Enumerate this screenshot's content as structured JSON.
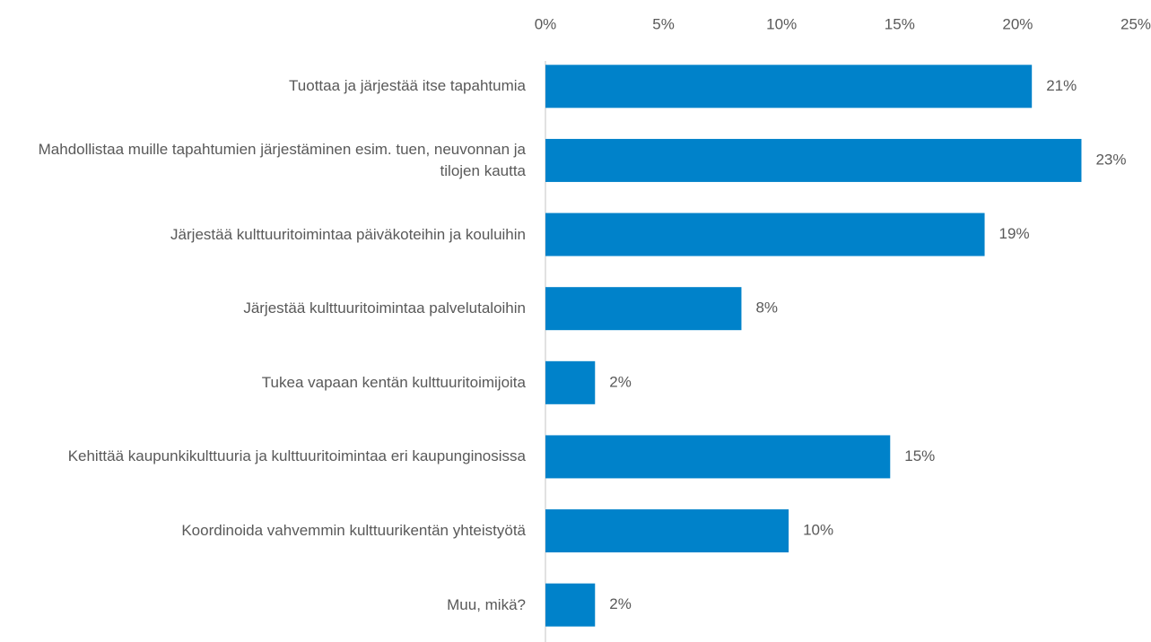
{
  "chart_data": {
    "type": "barh",
    "categories": [
      "Tuottaa ja järjestää itse tapahtumia",
      "Mahdollistaa muille tapahtumien järjestäminen esim. tuen, neuvonnan ja tilojen kautta",
      "Järjestää kulttuuritoimintaa päiväkoteihin ja kouluihin",
      "Järjestää kulttuuritoimintaa palvelutaloihin",
      "Tukea vapaan kentän kulttuuritoimijoita",
      "Kehittää kaupunkikulttuuria ja kulttuuritoimintaa eri kaupunginosissa",
      "Koordinoida vahvemmin kulttuurikentän yhteistyötä",
      "Muu, mikä?"
    ],
    "values": [
      20.6,
      22.7,
      18.6,
      8.3,
      2.1,
      14.6,
      10.3,
      2.1
    ],
    "value_labels": [
      "21%",
      "23%",
      "19%",
      "8%",
      "2%",
      "15%",
      "10%",
      "2%"
    ],
    "color": "#0082ca",
    "xlim": [
      0,
      25
    ],
    "xticks": [
      {
        "value": 0,
        "label": "0%"
      },
      {
        "value": 5,
        "label": "5%"
      },
      {
        "value": 10,
        "label": "10%"
      },
      {
        "value": 15,
        "label": "15%"
      },
      {
        "value": 20,
        "label": "20%"
      },
      {
        "value": 25,
        "label": "25%"
      }
    ]
  }
}
